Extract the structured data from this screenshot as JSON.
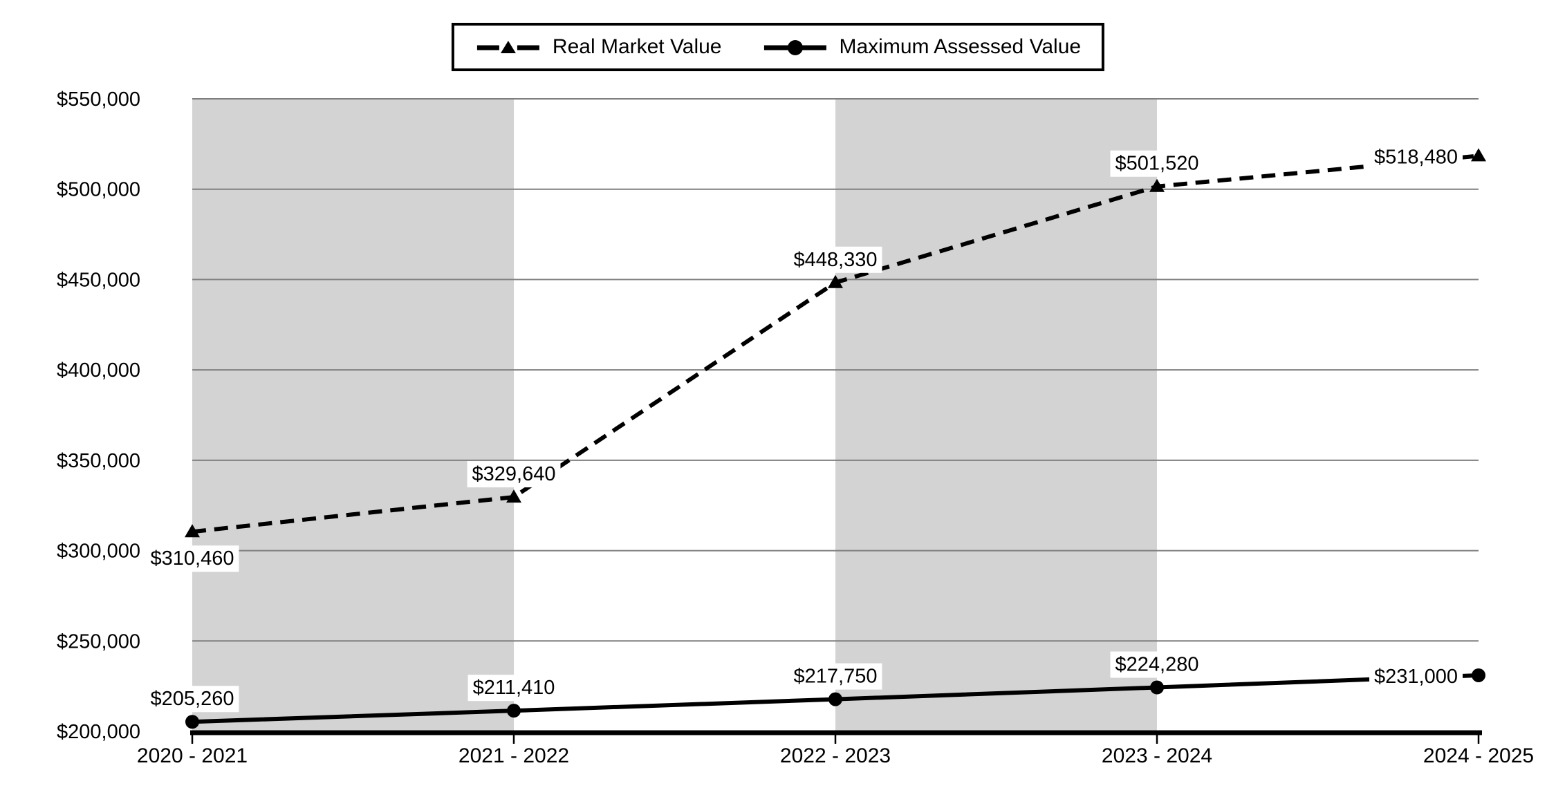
{
  "page": {
    "background": "#ffffff"
  },
  "legend": {
    "items": [
      {
        "label": "Real Market Value",
        "marker": "dashed-line-triangle"
      },
      {
        "label": "Maximum Assessed Value",
        "marker": "solid-line-circle"
      }
    ]
  },
  "chart_data": {
    "type": "line",
    "title": "",
    "xlabel": "",
    "ylabel": "",
    "categories": [
      "2020 - 2021",
      "2021 - 2022",
      "2022 - 2023",
      "2023 - 2024",
      "2024 - 2025"
    ],
    "series": [
      {
        "name": "Real Market Value",
        "values": [
          310460,
          329640,
          448330,
          501520,
          518480
        ],
        "data_labels": [
          "$310,460",
          "$329,640",
          "$448,330",
          "$501,520",
          "$518,480"
        ],
        "label_positions": [
          "below",
          "above",
          "above",
          "above",
          "left"
        ],
        "line_style": "dashed",
        "marker": "triangle",
        "color": "#000000"
      },
      {
        "name": "Maximum Assessed Value",
        "values": [
          205260,
          211410,
          217750,
          224280,
          231000
        ],
        "data_labels": [
          "$205,260",
          "$211,410",
          "$217,750",
          "$224,280",
          "$231,000"
        ],
        "label_positions": [
          "above",
          "above",
          "above",
          "above",
          "left"
        ],
        "line_style": "solid",
        "marker": "circle",
        "color": "#000000"
      }
    ],
    "ylim": [
      200000,
      550000
    ],
    "ytick_step": 50000,
    "ytick_labels": [
      "$200,000",
      "$250,000",
      "$300,000",
      "$350,000",
      "$400,000",
      "$450,000",
      "$500,000",
      "$550,000"
    ],
    "grid": true,
    "gridline_color": "#7f7f7f",
    "band_fill": "#d3d3d3",
    "band_pattern": "alternating-start-gray",
    "axis_line_color": "#000000",
    "data_label_background": "#ffffff",
    "legend_position": "top-center"
  }
}
